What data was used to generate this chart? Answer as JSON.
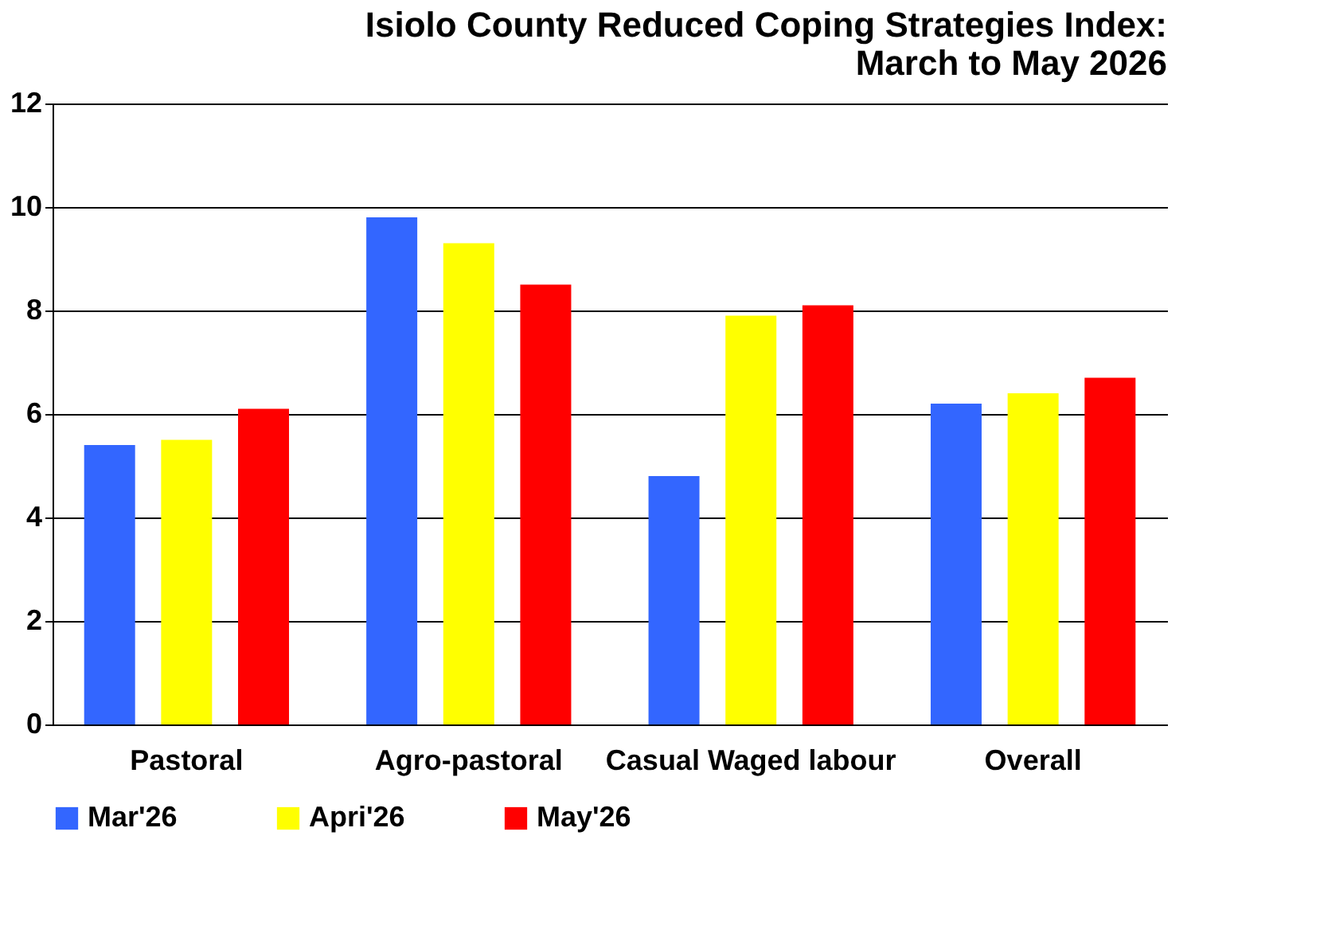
{
  "chart_data": {
    "type": "bar",
    "title": [
      "Isiolo County Reduced Coping Strategies Index:",
      "March to May 2026"
    ],
    "categories": [
      "Pastoral",
      "Agro-pastoral",
      "Casual Waged labour",
      "Overall"
    ],
    "series": [
      {
        "name": "Mar'26",
        "color": "#3366ff",
        "values": [
          5.4,
          9.8,
          4.8,
          6.2
        ]
      },
      {
        "name": "Apri'26",
        "color": "#ffff00",
        "values": [
          5.5,
          9.3,
          7.9,
          6.4
        ]
      },
      {
        "name": "May'26",
        "color": "#ff0000",
        "values": [
          6.1,
          8.5,
          8.1,
          6.7
        ]
      }
    ],
    "ylim": [
      0,
      12
    ],
    "yticks": [
      0,
      2,
      4,
      6,
      8,
      10,
      12
    ],
    "grid": "y",
    "legend": "bottom"
  }
}
